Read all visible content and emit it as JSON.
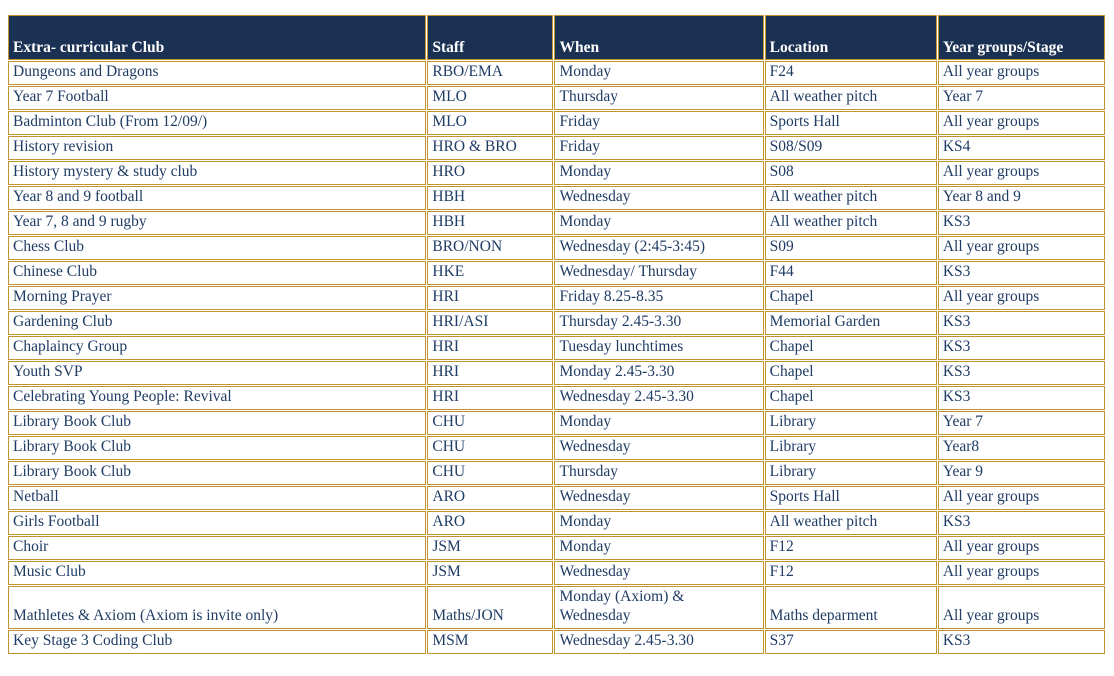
{
  "colors": {
    "header_bg": "#1b3153",
    "header_text": "#ffffff",
    "border_gold": "#c0952f",
    "cell_text": "#1f3c64",
    "page_bg": "#ffffff"
  },
  "table": {
    "headers": [
      "Extra- curricular Club",
      "Staff",
      "When",
      "Location",
      "Year groups/Stage"
    ],
    "rows": [
      [
        "Dungeons and Dragons",
        "RBO/EMA",
        "Monday",
        "F24",
        "All year groups"
      ],
      [
        "Year 7 Football",
        "MLO",
        "Thursday",
        "All weather pitch",
        "Year 7"
      ],
      [
        "Badminton Club (From 12/09/)",
        "MLO",
        "Friday",
        "Sports Hall",
        "All year groups"
      ],
      [
        "History revision",
        "HRO & BRO",
        "Friday",
        "S08/S09",
        "KS4"
      ],
      [
        "History mystery & study club",
        "HRO",
        "Monday",
        "S08",
        "All year groups"
      ],
      [
        "Year 8 and 9 football",
        "HBH",
        "Wednesday",
        "All weather pitch",
        "Year 8 and 9"
      ],
      [
        "Year 7, 8 and 9 rugby",
        "HBH",
        "Monday",
        "All weather pitch",
        "KS3"
      ],
      [
        "Chess Club",
        "BRO/NON",
        "Wednesday (2:45-3:45)",
        "S09",
        "All year groups"
      ],
      [
        "Chinese Club",
        "HKE",
        "Wednesday/ Thursday",
        "F44",
        "KS3"
      ],
      [
        "Morning Prayer",
        "HRI",
        "Friday 8.25-8.35",
        "Chapel",
        "All year groups"
      ],
      [
        "Gardening Club",
        "HRI/ASI",
        "Thursday 2.45-3.30",
        "Memorial Garden",
        "KS3"
      ],
      [
        "Chaplaincy Group",
        "HRI",
        "Tuesday lunchtimes",
        "Chapel",
        "KS3"
      ],
      [
        "Youth SVP",
        "HRI",
        "Monday 2.45-3.30",
        "Chapel",
        "KS3"
      ],
      [
        "Celebrating Young People: Revival",
        "HRI",
        "Wednesday 2.45-3.30",
        "Chapel",
        "KS3"
      ],
      [
        "Library Book Club",
        "CHU",
        "Monday",
        "Library",
        "Year 7"
      ],
      [
        "Library Book Club",
        "CHU",
        "Wednesday",
        "Library",
        "Year8"
      ],
      [
        "Library Book Club",
        "CHU",
        "Thursday",
        "Library",
        "Year 9"
      ],
      [
        "Netball",
        "ARO",
        "Wednesday",
        "Sports Hall",
        "All year groups"
      ],
      [
        "Girls Football",
        "ARO",
        "Monday",
        "All weather pitch",
        "KS3"
      ],
      [
        "Choir",
        "JSM",
        "Monday",
        "F12",
        "All year groups"
      ],
      [
        "Music Club",
        "JSM",
        "Wednesday",
        "F12",
        "All year groups"
      ],
      [
        "Mathletes & Axiom (Axiom is invite only)",
        "Maths/JON",
        "Monday (Axiom) &\nWednesday",
        "Maths deparment",
        "All year groups"
      ],
      [
        "Key Stage 3 Coding Club",
        "MSM",
        "Wednesday 2.45-3.30",
        "S37",
        "KS3"
      ]
    ]
  }
}
